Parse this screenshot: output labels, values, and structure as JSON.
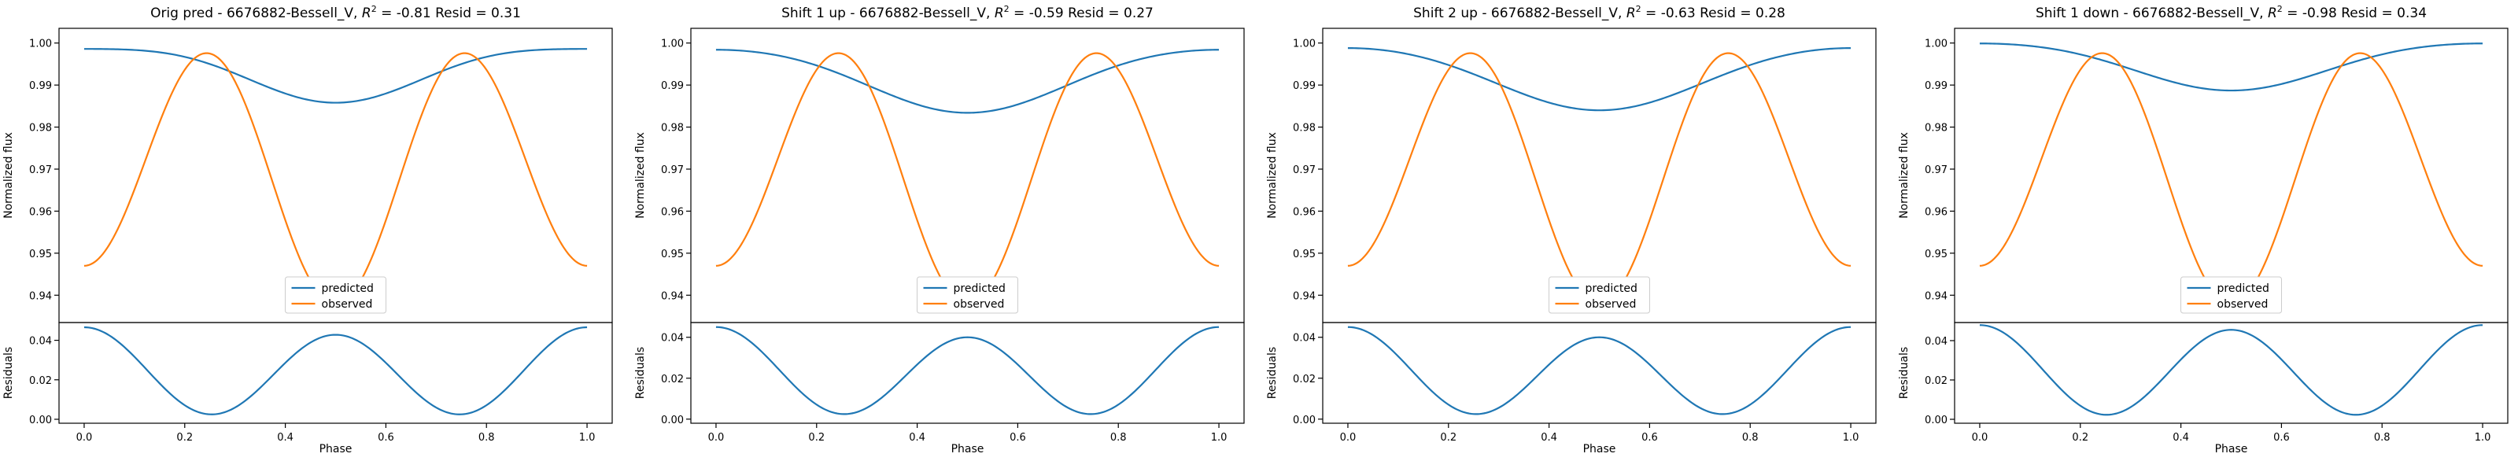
{
  "figure": {
    "colors": {
      "predicted": "#1f77b4",
      "observed": "#ff7f0e",
      "axes": "#000000",
      "background": "#ffffff"
    }
  },
  "chart_data": [
    {
      "type": "line",
      "title_pre": "Orig pred - 6676882-Bessell_V, ",
      "r2_symbol": "R",
      "r2_sup": "2",
      "title_post": " = -0.81 Resid = 0.31",
      "xlabel": "Phase",
      "ylabel": "Normalized flux",
      "resid_ylabel": "Residuals",
      "xlim": [
        -0.05,
        1.05
      ],
      "ylim": [
        0.9335,
        1.0035
      ],
      "resid_ylim": [
        -0.002,
        0.049
      ],
      "xticks": [
        "0.0",
        "0.2",
        "0.4",
        "0.6",
        "0.8",
        "1.0"
      ],
      "yticks": [
        "0.94",
        "0.95",
        "0.96",
        "0.97",
        "0.98",
        "0.99",
        "1.00"
      ],
      "resid_yticks": [
        "0.00",
        "0.02",
        "0.04"
      ],
      "legend": {
        "predicted": "predicted",
        "observed": "observed",
        "position": "lower center"
      },
      "series": [
        {
          "name": "predicted",
          "model": {
            "mean": 0.9936,
            "a1": 0.0064,
            "a2": -0.0014
          }
        },
        {
          "name": "observed",
          "model": {
            "mean": 0.97,
            "a1": 0.0045,
            "a2": -0.0275
          }
        },
        {
          "name": "residuals",
          "model": {
            "mean": 0.0236,
            "a1": 0.0019,
            "a2": 0.0211
          }
        }
      ]
    },
    {
      "type": "line",
      "title_pre": "Shift 1 up - 6676882-Bessell_V, ",
      "r2_symbol": "R",
      "r2_sup": "2",
      "title_post": " = -0.59 Resid = 0.27",
      "xlabel": "Phase",
      "ylabel": "Normalized flux",
      "resid_ylabel": "Residuals",
      "xlim": [
        -0.05,
        1.05
      ],
      "ylim": [
        0.9335,
        1.0035
      ],
      "resid_ylim": [
        -0.002,
        0.0472
      ],
      "xticks": [
        "0.0",
        "0.2",
        "0.4",
        "0.6",
        "0.8",
        "1.0"
      ],
      "yticks": [
        "0.94",
        "0.95",
        "0.96",
        "0.97",
        "0.98",
        "0.99",
        "1.00"
      ],
      "resid_yticks": [
        "0.00",
        "0.02",
        "0.04"
      ],
      "legend": {
        "predicted": "predicted",
        "observed": "observed",
        "position": "lower center"
      },
      "series": [
        {
          "name": "predicted",
          "model": {
            "mean": 0.9917,
            "a1": 0.0075,
            "a2": -0.0008
          }
        },
        {
          "name": "observed",
          "model": {
            "mean": 0.97,
            "a1": 0.0045,
            "a2": -0.0275
          }
        },
        {
          "name": "residuals",
          "model": {
            "mean": 0.0225,
            "a1": 0.0025,
            "a2": 0.02
          }
        }
      ]
    },
    {
      "type": "line",
      "title_pre": "Shift 2 up - 6676882-Bessell_V, ",
      "r2_symbol": "R",
      "r2_sup": "2",
      "title_post": " = -0.63 Resid = 0.28",
      "xlabel": "Phase",
      "ylabel": "Normalized flux",
      "resid_ylabel": "Residuals",
      "xlim": [
        -0.05,
        1.05
      ],
      "ylim": [
        0.9335,
        1.0035
      ],
      "resid_ylim": [
        -0.002,
        0.0472
      ],
      "xticks": [
        "0.0",
        "0.2",
        "0.4",
        "0.6",
        "0.8",
        "1.0"
      ],
      "yticks": [
        "0.94",
        "0.95",
        "0.96",
        "0.97",
        "0.98",
        "0.99",
        "1.00"
      ],
      "resid_yticks": [
        "0.00",
        "0.02",
        "0.04"
      ],
      "legend": {
        "predicted": "predicted",
        "observed": "observed",
        "position": "lower center"
      },
      "series": [
        {
          "name": "predicted",
          "model": {
            "mean": 0.992,
            "a1": 0.0074,
            "a2": -0.0006
          }
        },
        {
          "name": "observed",
          "model": {
            "mean": 0.97,
            "a1": 0.0045,
            "a2": -0.0275
          }
        },
        {
          "name": "residuals",
          "model": {
            "mean": 0.0225,
            "a1": 0.0025,
            "a2": 0.02
          }
        }
      ]
    },
    {
      "type": "line",
      "title_pre": "Shift 1 down - 6676882-Bessell_V, ",
      "r2_symbol": "R",
      "r2_sup": "2",
      "title_post": " = -0.98 Resid = 0.34",
      "xlabel": "Phase",
      "ylabel": "Normalized flux",
      "resid_ylabel": "Residuals",
      "xlim": [
        -0.05,
        1.05
      ],
      "ylim": [
        0.9335,
        1.0035
      ],
      "resid_ylim": [
        -0.002,
        0.0492
      ],
      "xticks": [
        "0.0",
        "0.2",
        "0.4",
        "0.6",
        "0.8",
        "1.0"
      ],
      "yticks": [
        "0.94",
        "0.95",
        "0.96",
        "0.97",
        "0.98",
        "0.99",
        "1.00"
      ],
      "resid_yticks": [
        "0.00",
        "0.02",
        "0.04"
      ],
      "legend": {
        "predicted": "predicted",
        "observed": "observed",
        "position": "lower center"
      },
      "series": [
        {
          "name": "predicted",
          "model": {
            "mean": 0.995,
            "a1": 0.0056,
            "a2": -0.0007
          }
        },
        {
          "name": "observed",
          "model": {
            "mean": 0.97,
            "a1": 0.0045,
            "a2": -0.0275
          }
        },
        {
          "name": "residuals",
          "model": {
            "mean": 0.0245,
            "a1": 0.0012,
            "a2": 0.0222
          }
        }
      ]
    }
  ]
}
